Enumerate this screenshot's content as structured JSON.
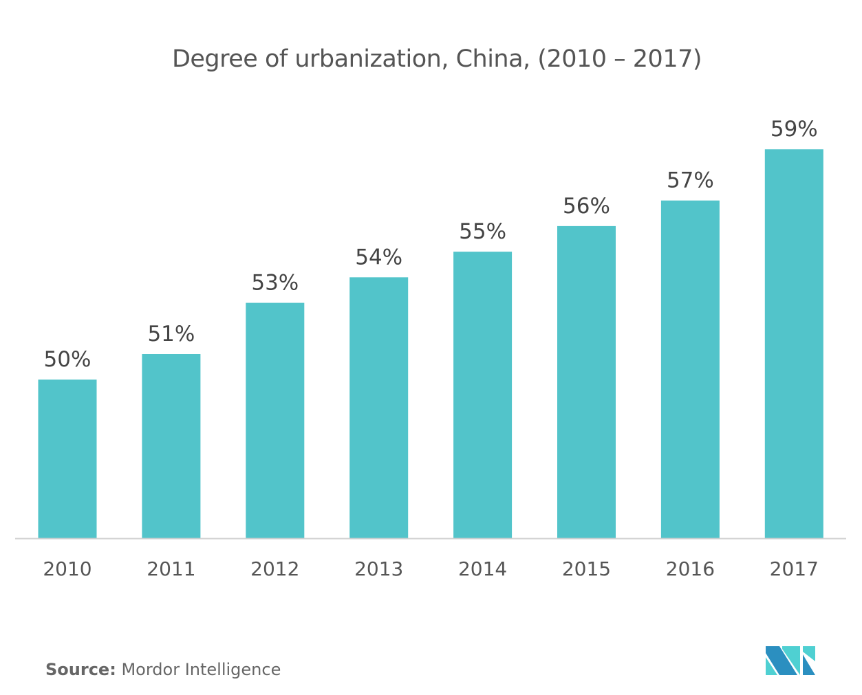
{
  "chart_data": {
    "type": "bar",
    "title": "Degree of urbanization, China, (2010 – 2017)",
    "categories": [
      "2010",
      "2011",
      "2012",
      "2013",
      "2014",
      "2015",
      "2016",
      "2017"
    ],
    "values": [
      50,
      51,
      53,
      54,
      55,
      56,
      57,
      59
    ],
    "data_labels": [
      "50%",
      "51%",
      "53%",
      "54%",
      "55%",
      "56%",
      "57%",
      "59%"
    ],
    "xlabel": "",
    "ylabel": "",
    "ylim": [
      43.8,
      60
    ],
    "grid": false,
    "bar_color": "#52c4ca"
  },
  "source": {
    "label": "Source:",
    "text": "Mordor Intelligence"
  },
  "logo": {
    "colors": [
      "#2b8fc0",
      "#4fd0d2"
    ]
  }
}
